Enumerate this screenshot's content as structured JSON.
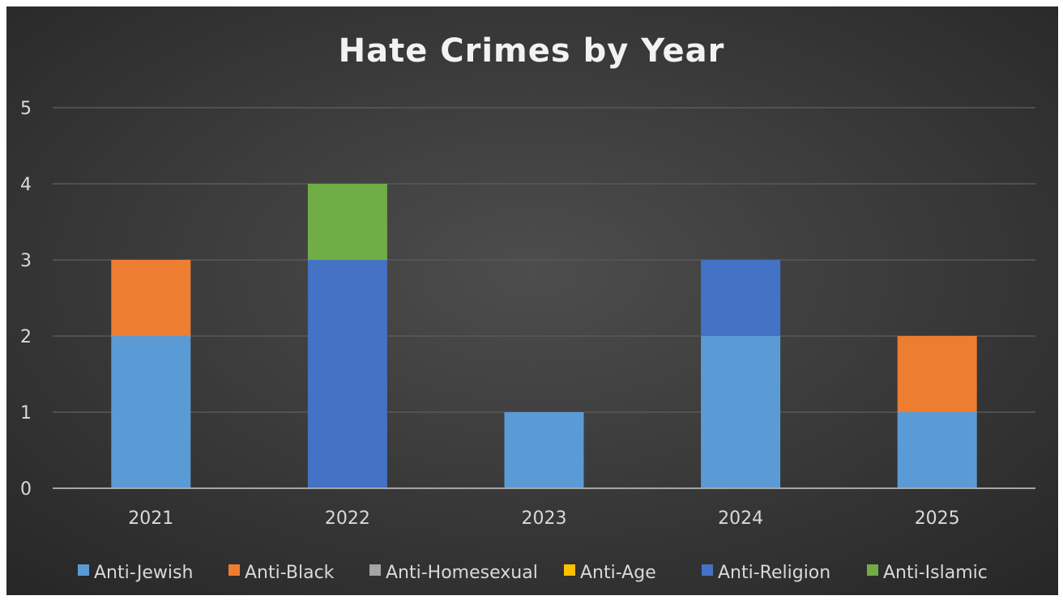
{
  "chart_data": {
    "type": "bar",
    "stacked": true,
    "title": "Hate Crimes by Year",
    "xlabel": "",
    "ylabel": "",
    "categories": [
      "2021",
      "2022",
      "2023",
      "2024",
      "2025"
    ],
    "ylim": [
      0,
      5
    ],
    "yticks": [
      0,
      1,
      2,
      3,
      4,
      5
    ],
    "grid": true,
    "legend_position": "bottom",
    "series": [
      {
        "name": "Anti-Jewish",
        "color": "#5b9bd5",
        "values": [
          2,
          0,
          1,
          2,
          1
        ]
      },
      {
        "name": "Anti-Black",
        "color": "#ed7d31",
        "values": [
          1,
          0,
          0,
          0,
          1
        ]
      },
      {
        "name": "Anti-Homesexual",
        "color": "#a5a5a5",
        "values": [
          0,
          0,
          0,
          0,
          0
        ]
      },
      {
        "name": "Anti-Age",
        "color": "#ffc000",
        "values": [
          0,
          0,
          0,
          0,
          0
        ]
      },
      {
        "name": "Anti-Religion",
        "color": "#4472c4",
        "values": [
          0,
          3,
          0,
          1,
          0
        ]
      },
      {
        "name": "Anti-Islamic",
        "color": "#70ad47",
        "values": [
          0,
          1,
          0,
          0,
          0
        ]
      }
    ],
    "colors": {
      "background": "#3a3a3a",
      "gridline": "#595959",
      "axis": "#a6a6a6",
      "text": "#d9d9d9",
      "title": "#f2f2f2"
    }
  }
}
